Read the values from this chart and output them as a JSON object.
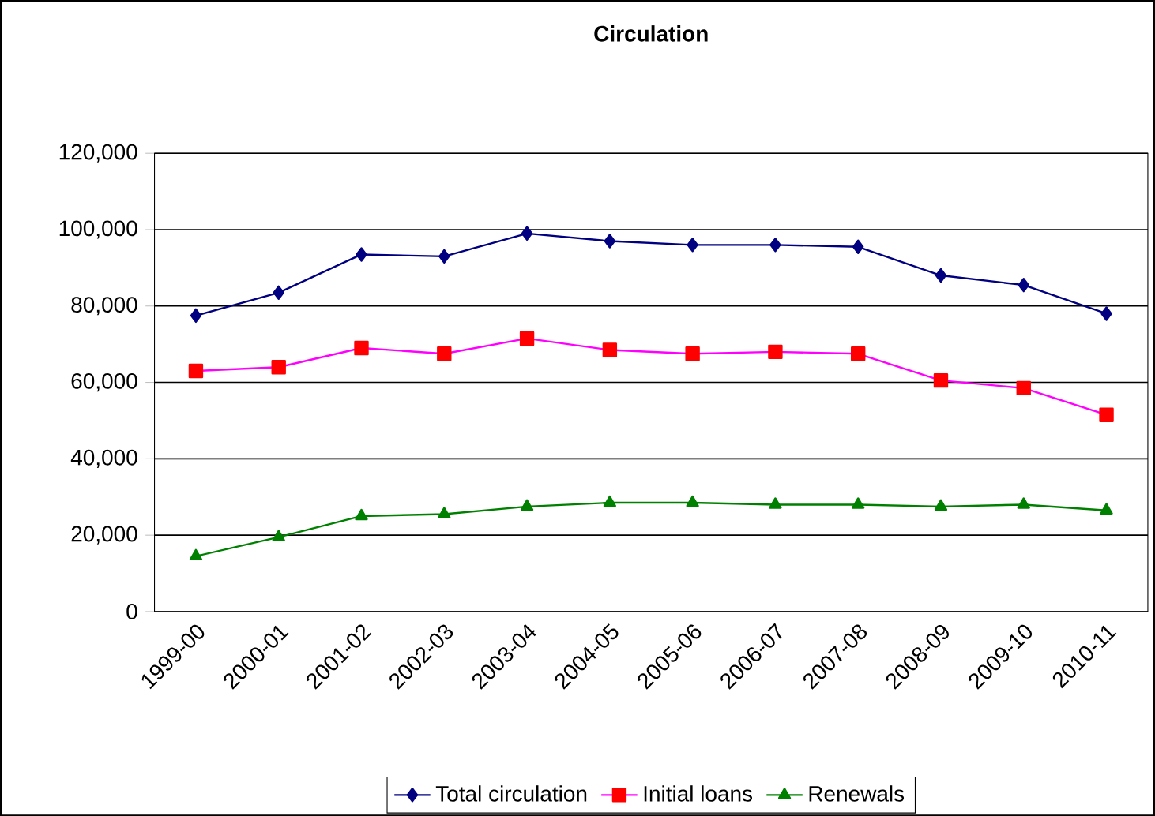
{
  "chart_data": {
    "type": "line",
    "title": "Circulation",
    "categories": [
      "1999-00",
      "2000-01",
      "2001-02",
      "2002-03",
      "2003-04",
      "2004-05",
      "2005-06",
      "2006-07",
      "2007-08",
      "2008-09",
      "2009-10",
      "2010-11"
    ],
    "series": [
      {
        "name": "Total circulation",
        "color": "#000080",
        "marker": "diamond",
        "values": [
          77500,
          83500,
          93500,
          93000,
          99000,
          97000,
          96000,
          96000,
          95500,
          88000,
          85500,
          78000
        ]
      },
      {
        "name": "Initial loans",
        "color": "#ff00ff",
        "marker": "square",
        "colors": [
          "#ff0000",
          "#ff0000",
          "#ff0000",
          "#ff0000",
          "#ff0000",
          "#ff0000",
          "#ff0000",
          "#ff0000",
          "#ff0000",
          "#ff0000",
          "#ff0000",
          "#ff0000"
        ],
        "values": [
          63000,
          64000,
          69000,
          67500,
          71500,
          68500,
          67500,
          68000,
          67500,
          60500,
          58500,
          51500
        ]
      },
      {
        "name": "Renewals",
        "color": "#008000",
        "marker": "triangle",
        "values": [
          14500,
          19500,
          25000,
          25500,
          27500,
          28500,
          28500,
          28000,
          28000,
          27500,
          28000,
          26500
        ]
      }
    ],
    "ylim": [
      0,
      120000
    ],
    "yticks": [
      0,
      {
        "value": 20000,
        "label": "20,000"
      },
      {
        "value": 40000,
        "label": "40,000"
      },
      {
        "value": 60000,
        "label": "60,000"
      },
      {
        "value": 80000,
        "label": "80,000"
      },
      {
        "value": 100000,
        "label": "100,000"
      },
      {
        "value": 120000,
        "label": "120,000"
      }
    ],
    "grid": "y",
    "legend": "bottom",
    "line_style": "solid"
  }
}
